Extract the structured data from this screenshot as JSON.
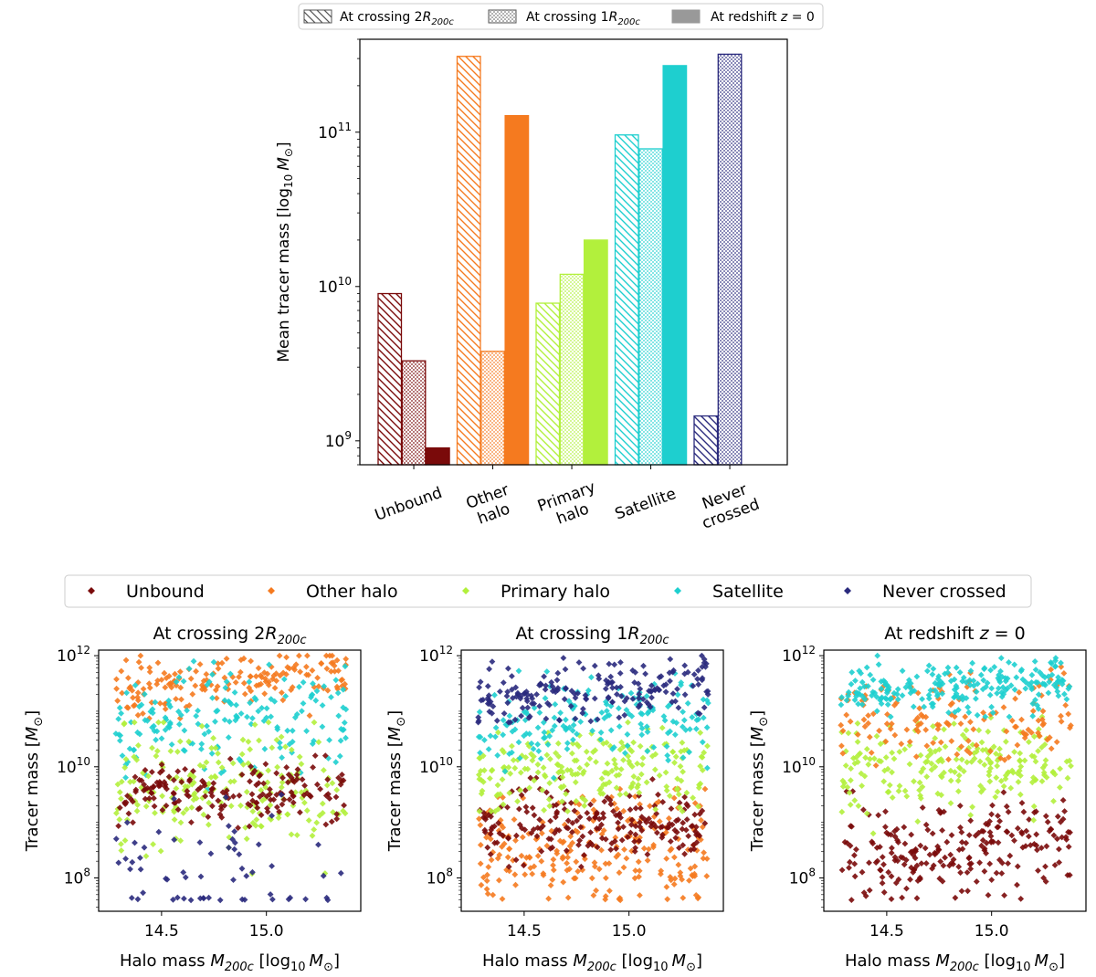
{
  "colors": {
    "unbound": "#7a0a0a",
    "other_halo": "#f57a1f",
    "primary_halo": "#b2f03c",
    "satellite": "#1ecfcf",
    "never_crossed": "#2a2a7d"
  },
  "top_legend": {
    "entries": [
      {
        "pre": "At crossing 2",
        "sym": "R",
        "sub": "200c",
        "style": "hatch"
      },
      {
        "pre": "At crossing 1",
        "sym": "R",
        "sub": "200c",
        "style": "dots"
      },
      {
        "pre": "At redshift ",
        "sym": "z",
        "post": " = 0",
        "style": "solid"
      }
    ]
  },
  "scatter_legend": {
    "entries": [
      "Unbound",
      "Other halo",
      "Primary halo",
      "Satellite",
      "Never crossed"
    ]
  },
  "chart_data": [
    {
      "type": "bar",
      "yscale": "log",
      "ylabel": {
        "pre": "Mean tracer mass [log",
        "sub": "10",
        "sym": "M",
        "symsub": "⊙",
        "post": "]"
      },
      "ylim": [
        700000000.0,
        400000000000.0
      ],
      "yticks": [
        {
          "base": "10",
          "exp": "9",
          "value": 1000000000.0
        },
        {
          "base": "10",
          "exp": "10",
          "value": 10000000000.0
        },
        {
          "base": "10",
          "exp": "11",
          "value": 100000000000.0
        }
      ],
      "categories": [
        "Unbound",
        "Other halo",
        "Primary halo",
        "Satellite",
        "Never crossed"
      ],
      "category_lines": [
        [
          "Unbound"
        ],
        [
          "Other",
          "halo"
        ],
        [
          "Primary",
          "halo"
        ],
        [
          "Satellite"
        ],
        [
          "Never",
          "crossed"
        ]
      ],
      "series": [
        {
          "name": "At crossing 2R200c",
          "style": "hatch",
          "values": [
            9000000000.0,
            310000000000.0,
            7800000000.0,
            96000000000.0,
            1450000000.0
          ]
        },
        {
          "name": "At crossing 1R200c",
          "style": "dots",
          "values": [
            3300000000.0,
            3800000000.0,
            12000000000.0,
            78000000000.0,
            320000000000.0
          ]
        },
        {
          "name": "At redshift z=0",
          "style": "solid",
          "values": [
            900000000.0,
            128000000000.0,
            20000000000.0,
            270000000000.0,
            null
          ]
        }
      ]
    },
    {
      "type": "scatter",
      "title": {
        "pre": "At crossing 2",
        "sym": "R",
        "sub": "200c"
      },
      "xlabel": {
        "pre": "Halo mass ",
        "sym": "M",
        "sub": "200c",
        "mid": " [log",
        "sub2": "10",
        "sym2": "M",
        "symsub": "⊙",
        "post": "]"
      },
      "ylabel": {
        "pre": "Tracer mass [",
        "sym": "M",
        "symsub": "⊙",
        "post": "]"
      },
      "xlim": [
        14.2,
        15.45
      ],
      "ylim_log10": [
        7.4,
        12.1
      ],
      "xticks": [
        "14.5",
        "15.0"
      ],
      "yticks": [
        {
          "base": "10",
          "exp": "8",
          "value": 8
        },
        {
          "base": "10",
          "exp": "10",
          "value": 10
        },
        {
          "base": "10",
          "exp": "12",
          "value": 12
        }
      ],
      "series": [
        {
          "name": "Other halo",
          "color_key": "other_halo",
          "n": 170,
          "center": 11.55,
          "spread": 0.22,
          "slope": 0.35,
          "min": 10.8,
          "max": 12.0
        },
        {
          "name": "Satellite",
          "color_key": "satellite",
          "n": 170,
          "center": 10.85,
          "spread": 0.45,
          "slope": 0.2,
          "min": 9.6,
          "max": 11.9
        },
        {
          "name": "Primary halo",
          "color_key": "primary_halo",
          "n": 200,
          "center": 9.6,
          "spread": 0.55,
          "slope": 0.0,
          "min": 8.0,
          "max": 10.8
        },
        {
          "name": "Unbound",
          "color_key": "unbound",
          "n": 170,
          "center": 9.55,
          "spread": 0.28,
          "slope": 0.0,
          "min": 8.9,
          "max": 10.2
        },
        {
          "name": "Never crossed",
          "color_key": "never_crossed",
          "n": 60,
          "center": 8.2,
          "spread": 0.75,
          "slope": 0.0,
          "min": 7.0,
          "max": 9.6
        }
      ]
    },
    {
      "type": "scatter",
      "title": {
        "pre": "At crossing 1",
        "sym": "R",
        "sub": "200c"
      },
      "xlabel": {
        "pre": "Halo mass ",
        "sym": "M",
        "sub": "200c",
        "mid": " [log",
        "sub2": "10",
        "sym2": "M",
        "symsub": "⊙",
        "post": "]"
      },
      "ylabel": {
        "pre": "Tracer mass [",
        "sym": "M",
        "symsub": "⊙",
        "post": "]"
      },
      "xlim": [
        14.2,
        15.45
      ],
      "ylim_log10": [
        7.4,
        12.1
      ],
      "xticks": [
        "14.5",
        "15.0"
      ],
      "yticks": [
        {
          "base": "10",
          "exp": "8",
          "value": 8
        },
        {
          "base": "10",
          "exp": "10",
          "value": 10
        },
        {
          "base": "10",
          "exp": "12",
          "value": 12
        }
      ],
      "series": [
        {
          "name": "Other halo",
          "color_key": "other_halo",
          "n": 230,
          "center": 8.5,
          "spread": 0.55,
          "slope": 0.0,
          "min": 7.0,
          "max": 9.6
        },
        {
          "name": "Unbound",
          "color_key": "unbound",
          "n": 200,
          "center": 9.0,
          "spread": 0.35,
          "slope": 0.0,
          "min": 8.2,
          "max": 9.8
        },
        {
          "name": "Primary halo",
          "color_key": "primary_halo",
          "n": 210,
          "center": 9.9,
          "spread": 0.38,
          "slope": 0.15,
          "min": 9.2,
          "max": 10.8
        },
        {
          "name": "Satellite",
          "color_key": "satellite",
          "n": 170,
          "center": 10.8,
          "spread": 0.38,
          "slope": 0.15,
          "min": 9.8,
          "max": 11.8
        },
        {
          "name": "Never crossed",
          "color_key": "never_crossed",
          "n": 190,
          "center": 11.35,
          "spread": 0.28,
          "slope": 0.35,
          "min": 10.8,
          "max": 12.0
        }
      ]
    },
    {
      "type": "scatter",
      "title": {
        "pre": "At redshift ",
        "sym": "z",
        "post": " = 0"
      },
      "xlabel": {
        "pre": "Halo mass ",
        "sym": "M",
        "sub": "200c",
        "mid": " [log",
        "sub2": "10",
        "sym2": "M",
        "symsub": "⊙",
        "post": "]"
      },
      "ylabel": {
        "pre": "Tracer mass [",
        "sym": "M",
        "symsub": "⊙",
        "post": "]"
      },
      "xlim": [
        14.2,
        15.45
      ],
      "ylim_log10": [
        7.4,
        12.1
      ],
      "xticks": [
        "14.5",
        "15.0"
      ],
      "yticks": [
        {
          "base": "10",
          "exp": "8",
          "value": 8
        },
        {
          "base": "10",
          "exp": "10",
          "value": 10
        },
        {
          "base": "10",
          "exp": "12",
          "value": 12
        }
      ],
      "series": [
        {
          "name": "Unbound",
          "color_key": "unbound",
          "n": 230,
          "center": 8.5,
          "spread": 0.45,
          "slope": 0.2,
          "min": 7.2,
          "max": 9.6
        },
        {
          "name": "Primary halo",
          "color_key": "primary_halo",
          "n": 210,
          "center": 10.0,
          "spread": 0.38,
          "slope": 0.1,
          "min": 8.8,
          "max": 10.9
        },
        {
          "name": "Other halo",
          "color_key": "other_halo",
          "n": 140,
          "center": 10.85,
          "spread": 0.4,
          "slope": 0.2,
          "min": 9.9,
          "max": 11.8
        },
        {
          "name": "Satellite",
          "color_key": "satellite",
          "n": 220,
          "center": 11.4,
          "spread": 0.22,
          "slope": 0.3,
          "min": 10.9,
          "max": 12.0
        }
      ]
    }
  ]
}
